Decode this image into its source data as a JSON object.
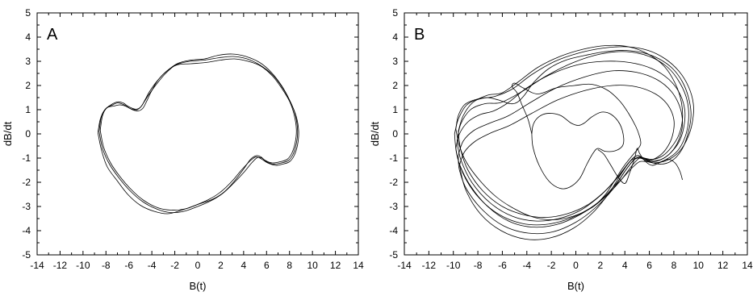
{
  "chart_data": [
    {
      "type": "line",
      "panel_label": "A",
      "xlabel": "B(t)",
      "ylabel": "dB/dt",
      "xlim": [
        -14,
        14
      ],
      "ylim": [
        -5,
        5
      ],
      "xticks": [
        -14,
        -12,
        -10,
        -8,
        -6,
        -4,
        -2,
        0,
        2,
        4,
        6,
        8,
        10,
        12,
        14
      ],
      "yticks": [
        -5,
        -4,
        -3,
        -2,
        -1,
        0,
        1,
        2,
        3,
        4,
        5
      ],
      "grid": false,
      "series": [
        {
          "x": [
            -8.6,
            -8.4,
            -8.0,
            -7.4,
            -7.0,
            -6.4,
            -5.9,
            -5.3,
            -4.9,
            -4.6,
            -4.2,
            -3.6,
            -2.8,
            -1.8,
            -0.6,
            0.6,
            1.8,
            3.0,
            4.2,
            5.4,
            6.4,
            7.3,
            8.0,
            8.5,
            8.7,
            8.6,
            8.3,
            7.9,
            7.3,
            6.6,
            6.0,
            5.6,
            5.2,
            4.7,
            4.0,
            3.1,
            2.2,
            1.2,
            0.0,
            -1.2,
            -2.4,
            -3.6,
            -4.8,
            -5.9,
            -6.9,
            -7.7,
            -8.3,
            -8.6
          ],
          "y": [
            0.1,
            0.7,
            1.05,
            1.2,
            1.28,
            1.2,
            1.05,
            1.0,
            1.15,
            1.4,
            1.75,
            2.15,
            2.55,
            2.9,
            3.05,
            3.1,
            3.25,
            3.3,
            3.2,
            2.95,
            2.55,
            2.0,
            1.4,
            0.8,
            0.15,
            -0.4,
            -0.85,
            -1.1,
            -1.2,
            -1.25,
            -1.15,
            -1.0,
            -0.98,
            -1.2,
            -1.6,
            -2.05,
            -2.45,
            -2.75,
            -3.0,
            -3.2,
            -3.25,
            -3.1,
            -2.8,
            -2.35,
            -1.8,
            -1.25,
            -0.6,
            0.1
          ]
        },
        {
          "x": [
            -8.7,
            -8.5,
            -8.1,
            -7.5,
            -7.0,
            -6.5,
            -6.0,
            -5.4,
            -5.0,
            -4.7,
            -4.3,
            -3.6,
            -2.8,
            -1.9,
            -0.7,
            0.6,
            1.9,
            3.1,
            4.3,
            5.4,
            6.5,
            7.4,
            8.1,
            8.6,
            8.8,
            8.7,
            8.4,
            8.0,
            7.4,
            6.8,
            6.1,
            5.6,
            5.1,
            4.6,
            3.8,
            3.0,
            2.0,
            1.0,
            -0.2,
            -1.4,
            -2.6,
            -3.8,
            -5.0,
            -6.1,
            -7.0,
            -7.9,
            -8.4,
            -8.7
          ],
          "y": [
            0.05,
            0.6,
            1.0,
            1.22,
            1.32,
            1.28,
            1.12,
            1.02,
            1.1,
            1.3,
            1.6,
            2.05,
            2.5,
            2.85,
            3.0,
            3.05,
            3.15,
            3.2,
            3.1,
            2.85,
            2.45,
            1.9,
            1.3,
            0.7,
            0.1,
            -0.45,
            -0.9,
            -1.15,
            -1.25,
            -1.3,
            -1.2,
            -1.05,
            -0.95,
            -1.1,
            -1.5,
            -1.95,
            -2.4,
            -2.7,
            -2.95,
            -3.15,
            -3.3,
            -3.2,
            -2.95,
            -2.5,
            -1.95,
            -1.35,
            -0.65,
            0.05
          ]
        },
        {
          "x": [
            -8.5,
            -8.3,
            -7.9,
            -7.3,
            -6.8,
            -6.3,
            -5.7,
            -5.2,
            -4.8,
            -4.5,
            -4.1,
            -3.5,
            -2.7,
            -1.8,
            -0.6,
            0.7,
            2.0,
            3.2,
            4.4,
            5.5,
            6.5,
            7.3,
            8.0,
            8.4,
            8.6,
            8.5,
            8.2,
            7.8,
            7.2,
            6.5,
            5.9,
            5.5,
            5.1,
            4.6,
            4.0,
            3.2,
            2.3,
            1.3,
            0.1,
            -1.1,
            -2.3,
            -3.5,
            -4.7,
            -5.8,
            -6.8,
            -7.6,
            -8.2,
            -8.5
          ],
          "y": [
            0.15,
            0.75,
            1.08,
            1.15,
            1.2,
            1.15,
            1.0,
            0.95,
            1.05,
            1.3,
            1.7,
            2.2,
            2.6,
            2.85,
            2.9,
            2.95,
            3.05,
            3.1,
            3.0,
            2.8,
            2.4,
            1.9,
            1.35,
            0.8,
            0.2,
            -0.35,
            -0.8,
            -1.05,
            -1.15,
            -1.2,
            -1.1,
            -0.95,
            -0.9,
            -1.05,
            -1.45,
            -1.95,
            -2.4,
            -2.7,
            -2.9,
            -3.1,
            -3.15,
            -3.05,
            -2.75,
            -2.3,
            -1.75,
            -1.2,
            -0.55,
            0.15
          ]
        }
      ]
    },
    {
      "type": "line",
      "panel_label": "B",
      "xlabel": "B(t)",
      "ylabel": "dB/dt",
      "xlim": [
        -14,
        14
      ],
      "ylim": [
        -5,
        5
      ],
      "xticks": [
        -14,
        -12,
        -10,
        -8,
        -6,
        -4,
        -2,
        0,
        2,
        4,
        6,
        8,
        10,
        12,
        14
      ],
      "yticks": [
        -5,
        -4,
        -3,
        -2,
        -1,
        0,
        1,
        2,
        3,
        4,
        5
      ],
      "grid": false,
      "series": [
        {
          "x": [
            -9.8,
            -9.6,
            -9.1,
            -8.3,
            -7.3,
            -6.3,
            -5.4,
            -4.8,
            -4.2,
            -3.4,
            -2.2,
            -0.8,
            0.8,
            2.4,
            4.0,
            5.5,
            6.8,
            7.9,
            8.7,
            9.2,
            9.4,
            9.2,
            8.8,
            8.3,
            7.7,
            7.0,
            6.3,
            5.7,
            5.2,
            4.6,
            3.7,
            2.6,
            1.3,
            -0.2,
            -1.8,
            -3.4,
            -5.0,
            -6.5,
            -7.8,
            -8.9,
            -9.5,
            -9.8
          ],
          "y": [
            0.2,
            0.75,
            1.2,
            1.4,
            1.5,
            1.4,
            1.25,
            1.3,
            1.6,
            2.15,
            2.7,
            3.05,
            3.25,
            3.4,
            3.45,
            3.35,
            3.1,
            2.7,
            2.15,
            1.5,
            0.8,
            0.1,
            -0.5,
            -0.9,
            -1.15,
            -1.25,
            -1.2,
            -1.05,
            -1.0,
            -1.3,
            -1.9,
            -2.5,
            -3.05,
            -3.4,
            -3.55,
            -3.45,
            -3.1,
            -2.6,
            -1.95,
            -1.2,
            -0.5,
            0.2
          ]
        },
        {
          "x": [
            -9.6,
            -9.2,
            -8.4,
            -7.2,
            -6.0,
            -4.7,
            -3.1,
            -1.3,
            0.6,
            2.5,
            4.3,
            5.9,
            7.2,
            8.1,
            8.6,
            8.7,
            8.4,
            7.8,
            7.1,
            6.3,
            5.6,
            5.0,
            4.4,
            3.5,
            2.3,
            0.9,
            -0.7,
            -2.4,
            -4.2,
            -6.0,
            -7.6,
            -8.8,
            -9.4,
            -9.6
          ],
          "y": [
            0.1,
            0.75,
            1.3,
            1.6,
            1.7,
            2.15,
            2.75,
            3.2,
            3.5,
            3.65,
            3.6,
            3.3,
            2.8,
            2.1,
            1.35,
            0.6,
            -0.05,
            -0.55,
            -0.9,
            -1.05,
            -1.0,
            -0.9,
            -1.15,
            -1.75,
            -2.4,
            -2.95,
            -3.3,
            -3.45,
            -3.35,
            -3.0,
            -2.35,
            -1.5,
            -0.65,
            0.1
          ]
        },
        {
          "x": [
            -9.9,
            -9.6,
            -8.9,
            -7.8,
            -6.6,
            -5.2,
            -3.6,
            -1.7,
            0.3,
            2.3,
            4.2,
            5.9,
            7.3,
            8.4,
            9.2,
            9.6,
            9.5,
            9.1,
            8.5,
            7.8,
            7.1,
            6.4,
            5.8,
            5.2,
            4.6,
            3.6,
            2.4,
            0.9,
            -0.8,
            -2.6,
            -4.4,
            -6.2,
            -7.8,
            -9.0,
            -9.7,
            -9.9
          ],
          "y": [
            0.0,
            0.6,
            1.2,
            1.45,
            1.55,
            1.85,
            2.45,
            3.0,
            3.35,
            3.55,
            3.6,
            3.45,
            3.1,
            2.6,
            1.95,
            1.2,
            0.45,
            -0.2,
            -0.7,
            -1.0,
            -1.15,
            -1.2,
            -1.15,
            -1.15,
            -1.4,
            -1.95,
            -2.6,
            -3.15,
            -3.55,
            -3.75,
            -3.7,
            -3.35,
            -2.7,
            -1.85,
            -0.9,
            0.0
          ]
        },
        {
          "x": [
            -9.7,
            -9.4,
            -8.6,
            -7.4,
            -6.1,
            -4.4,
            -2.4,
            -0.2,
            2.0,
            4.1,
            6.0,
            7.5,
            8.5,
            9.1,
            9.2,
            8.9,
            8.3,
            7.4,
            6.5,
            5.7,
            5.0,
            4.3,
            3.3,
            2.0,
            0.4,
            -1.4,
            -3.3,
            -5.2,
            -7.0,
            -8.5,
            -9.4,
            -9.7
          ],
          "y": [
            -0.3,
            0.4,
            1.0,
            1.25,
            1.3,
            1.75,
            2.4,
            2.95,
            3.3,
            3.4,
            3.2,
            2.75,
            2.1,
            1.35,
            0.55,
            -0.15,
            -0.7,
            -1.05,
            -1.2,
            -1.1,
            -0.9,
            -1.2,
            -1.85,
            -2.55,
            -3.15,
            -3.5,
            -3.6,
            -3.4,
            -2.85,
            -2.0,
            -1.05,
            -0.3
          ]
        },
        {
          "x": [
            -9.8,
            -9.5,
            -8.8,
            -7.8,
            -6.7,
            -5.5,
            -4.0,
            -2.1,
            0.1,
            2.3,
            4.4,
            6.2,
            7.6,
            8.5,
            8.9,
            8.8,
            8.4,
            7.7,
            7.0,
            6.2,
            5.5,
            4.9,
            4.2,
            3.3,
            2.0,
            0.3,
            -1.6,
            -3.6,
            -5.5,
            -7.2,
            -8.6,
            -9.5,
            -9.8
          ],
          "y": [
            -0.6,
            0.0,
            0.5,
            0.8,
            0.95,
            1.3,
            1.9,
            2.45,
            2.85,
            3.0,
            2.95,
            2.7,
            2.25,
            1.65,
            0.95,
            0.25,
            -0.35,
            -0.8,
            -1.05,
            -1.1,
            -1.0,
            -1.0,
            -1.4,
            -2.05,
            -2.75,
            -3.35,
            -3.75,
            -3.85,
            -3.6,
            -3.0,
            -2.15,
            -1.25,
            -0.6
          ]
        },
        {
          "x": [
            -9.6,
            -9.2,
            -8.3,
            -7.0,
            -5.5,
            -3.7,
            -1.6,
            0.7,
            2.9,
            4.9,
            6.6,
            7.8,
            8.5,
            8.7,
            8.4,
            7.8,
            7.0,
            6.2,
            5.5,
            4.8,
            4.0,
            3.0,
            1.6,
            0.0,
            -1.9,
            -3.9,
            -5.9,
            -7.6,
            -8.9,
            -9.5,
            -9.6
          ],
          "y": [
            -0.9,
            -0.3,
            0.15,
            0.45,
            0.75,
            1.3,
            1.9,
            2.35,
            2.6,
            2.55,
            2.25,
            1.75,
            1.1,
            0.4,
            -0.25,
            -0.75,
            -1.05,
            -1.15,
            -1.0,
            -1.05,
            -1.55,
            -2.3,
            -3.05,
            -3.65,
            -4.05,
            -4.1,
            -3.8,
            -3.15,
            -2.3,
            -1.5,
            -0.9
          ]
        },
        {
          "x": [
            -9.5,
            -9.1,
            -8.2,
            -6.9,
            -5.4,
            -3.6,
            -1.5,
            0.8,
            3.0,
            4.9,
            6.5,
            7.5,
            8.0,
            7.9,
            7.4,
            6.7,
            5.9,
            5.2,
            4.5,
            3.7,
            2.7,
            1.4,
            -0.2,
            -2.1,
            -4.1,
            -6.1,
            -7.8,
            -9.0,
            -9.5
          ],
          "y": [
            -1.3,
            -0.75,
            -0.3,
            0.05,
            0.35,
            0.85,
            1.4,
            1.8,
            2.0,
            1.95,
            1.65,
            1.2,
            0.6,
            -0.05,
            -0.6,
            -0.95,
            -1.1,
            -1.0,
            -1.1,
            -1.65,
            -2.45,
            -3.25,
            -3.9,
            -4.3,
            -4.35,
            -4.0,
            -3.3,
            -2.3,
            -1.3
          ]
        },
        {
          "x": [
            -3.6,
            -3.5,
            -3.2,
            -2.7,
            -2.0,
            -1.2,
            -0.4,
            0.2,
            0.7,
            1.3,
            2.1,
            2.9,
            3.6,
            3.9,
            3.8,
            3.2,
            2.4,
            1.8,
            1.4,
            0.9,
            0.3,
            -0.5,
            -1.3,
            -2.2,
            -3.0,
            -3.5,
            -3.6
          ],
          "y": [
            0.0,
            0.35,
            0.62,
            0.8,
            0.85,
            0.75,
            0.45,
            0.35,
            0.45,
            0.7,
            0.9,
            0.8,
            0.4,
            -0.15,
            -0.5,
            -0.7,
            -0.72,
            -0.6,
            -0.8,
            -1.25,
            -1.85,
            -2.2,
            -2.25,
            -1.95,
            -1.3,
            -0.55,
            0.0
          ]
        },
        {
          "x": [
            -3.6,
            -3.9,
            -4.4,
            -4.8,
            -5.2,
            -5.0,
            -4.3,
            -3.1,
            -1.6,
            -0.1,
            1.3,
            2.6,
            3.6,
            4.3,
            4.9,
            5.2,
            5.3,
            5.1,
            4.6,
            3.9,
            3.2,
            2.5,
            1.8
          ],
          "y": [
            0.0,
            0.6,
            1.2,
            1.7,
            1.95,
            2.1,
            1.9,
            1.65,
            1.9,
            2.0,
            2.05,
            1.8,
            1.35,
            0.85,
            0.3,
            -0.1,
            -0.4,
            -0.6,
            -0.9,
            -1.35,
            -1.9,
            -2.45,
            -2.85
          ]
        },
        {
          "x": [
            1.8,
            2.3,
            2.8,
            3.4,
            4.0,
            4.4,
            4.8,
            5.0,
            5.2,
            5.6,
            6.2,
            6.8,
            7.5,
            8.1,
            8.5,
            8.7
          ],
          "y": [
            -0.65,
            -0.85,
            -1.25,
            -1.75,
            -2.05,
            -1.6,
            -1.0,
            -0.6,
            -0.8,
            -1.1,
            -1.3,
            -1.2,
            -1.05,
            -1.2,
            -1.55,
            -1.9
          ]
        }
      ]
    }
  ]
}
